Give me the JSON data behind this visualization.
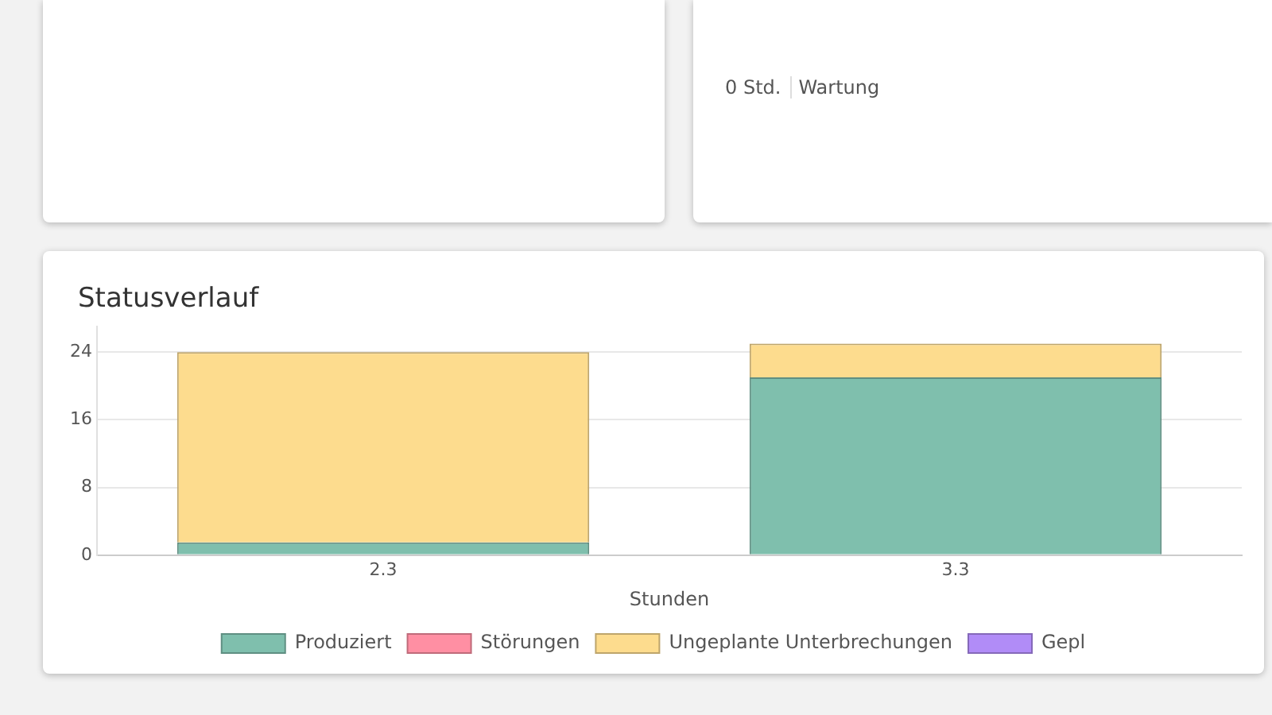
{
  "chart_data": {
    "type": "bar",
    "title": "Statusverlauf",
    "xlabel": "Stunden",
    "stacked": true,
    "categories": [
      "2.3",
      "3.3"
    ],
    "series": [
      {
        "name": "Produziert",
        "color": "#7fbfad",
        "values": [
          1.5,
          21
        ]
      },
      {
        "name": "Störungen",
        "color": "#ff8fa3",
        "values": [
          0,
          0
        ]
      },
      {
        "name": "Ungeplante Unterbrechungen",
        "color": "#fddc8e",
        "values": [
          22.5,
          4
        ]
      },
      {
        "name": "Gepl",
        "color": "#b18cf7",
        "values": [
          0,
          0
        ]
      }
    ],
    "ylim": [
      0,
      27
    ],
    "yticks": [
      0,
      8,
      16,
      24
    ],
    "grid": "y",
    "legend": "bottom",
    "annotations": [
      "0 Std.",
      "Wartung"
    ]
  }
}
